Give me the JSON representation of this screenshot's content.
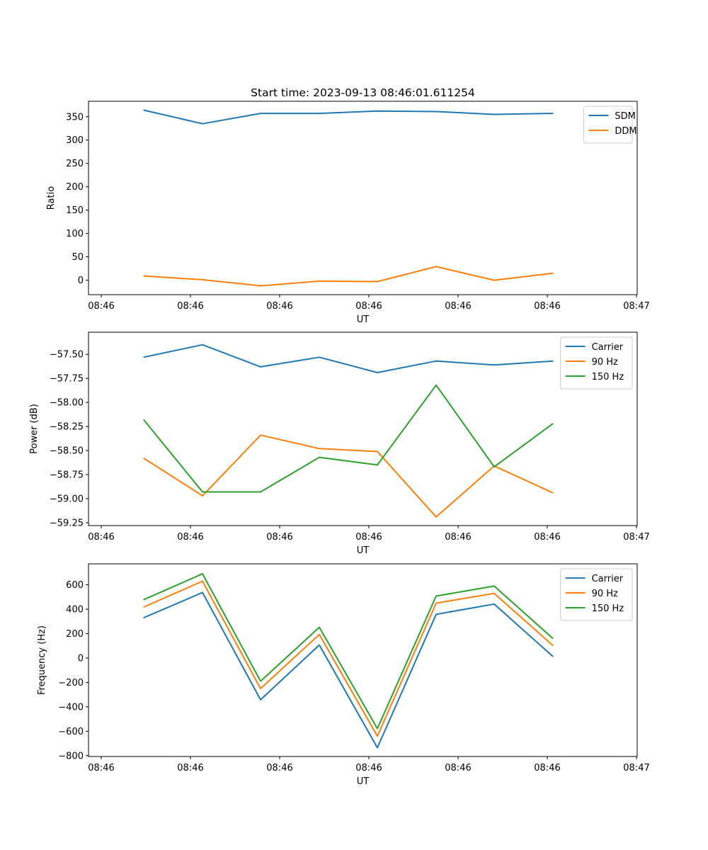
{
  "figure_title": "Start time: 2023-09-13 08:46:01.611254",
  "colors": {
    "c0": "#1f77b4",
    "c1": "#ff7f0e",
    "c2": "#2ca02c"
  },
  "chart_data": [
    {
      "type": "line",
      "title": "Start time: 2023-09-13 08:46:01.611254",
      "xlabel": "UT",
      "ylabel": "Ratio",
      "x_tick_labels": [
        "08:46",
        "08:46",
        "08:46",
        "08:46",
        "08:46",
        "08:46",
        "08:47"
      ],
      "ylim": [
        -31,
        383
      ],
      "y_ticks": [
        0,
        50,
        100,
        150,
        200,
        250,
        300,
        350
      ],
      "legend": "upper right",
      "series": [
        {
          "name": "SDM",
          "color": "#1f77b4",
          "values": [
            364,
            335,
            357,
            357,
            362,
            361,
            355,
            357
          ]
        },
        {
          "name": "DDM",
          "color": "#ff7f0e",
          "values": [
            9,
            1,
            -12,
            -2,
            -3,
            29,
            0,
            15
          ]
        }
      ]
    },
    {
      "type": "line",
      "title": "",
      "xlabel": "UT",
      "ylabel": "Power (dB)",
      "x_tick_labels": [
        "08:46",
        "08:46",
        "08:46",
        "08:46",
        "08:46",
        "08:46",
        "08:47"
      ],
      "ylim": [
        -59.28,
        -57.27
      ],
      "y_ticks": [
        -59.25,
        -59.0,
        -58.75,
        -58.5,
        -58.25,
        -58.0,
        -57.75,
        -57.5
      ],
      "y_tick_labels": [
        "−59.25",
        "−59.00",
        "−58.75",
        "−58.50",
        "−58.25",
        "−58.00",
        "−57.75",
        "−57.50"
      ],
      "legend": "upper right",
      "series": [
        {
          "name": "Carrier",
          "color": "#1f77b4",
          "values": [
            -57.53,
            -57.4,
            -57.63,
            -57.53,
            -57.69,
            -57.57,
            -57.61,
            -57.57
          ]
        },
        {
          "name": "90 Hz",
          "color": "#ff7f0e",
          "values": [
            -58.58,
            -58.97,
            -58.34,
            -58.48,
            -58.51,
            -59.19,
            -58.66,
            -58.94
          ]
        },
        {
          "name": "150 Hz",
          "color": "#2ca02c",
          "values": [
            -58.18,
            -58.93,
            -58.93,
            -58.57,
            -58.65,
            -57.82,
            -58.67,
            -58.22
          ]
        }
      ]
    },
    {
      "type": "line",
      "title": "",
      "xlabel": "UT",
      "ylabel": "Frequency (Hz)",
      "x_tick_labels": [
        "08:46",
        "08:46",
        "08:46",
        "08:46",
        "08:46",
        "08:46",
        "08:47"
      ],
      "ylim": [
        -807,
        772
      ],
      "y_ticks": [
        -800,
        -600,
        -400,
        -200,
        0,
        200,
        400,
        600
      ],
      "y_tick_labels": [
        "−800",
        "−600",
        "−400",
        "−200",
        "0",
        "200",
        "400",
        "600"
      ],
      "legend": "upper right",
      "series": [
        {
          "name": "Carrier",
          "color": "#1f77b4",
          "values": [
            330,
            537,
            -342,
            107,
            -735,
            358,
            442,
            12
          ]
        },
        {
          "name": "90 Hz",
          "color": "#ff7f0e",
          "values": [
            418,
            630,
            -250,
            193,
            -640,
            450,
            530,
            102
          ]
        },
        {
          "name": "150 Hz",
          "color": "#2ca02c",
          "values": [
            478,
            690,
            -190,
            252,
            -578,
            508,
            590,
            160
          ]
        }
      ]
    }
  ]
}
